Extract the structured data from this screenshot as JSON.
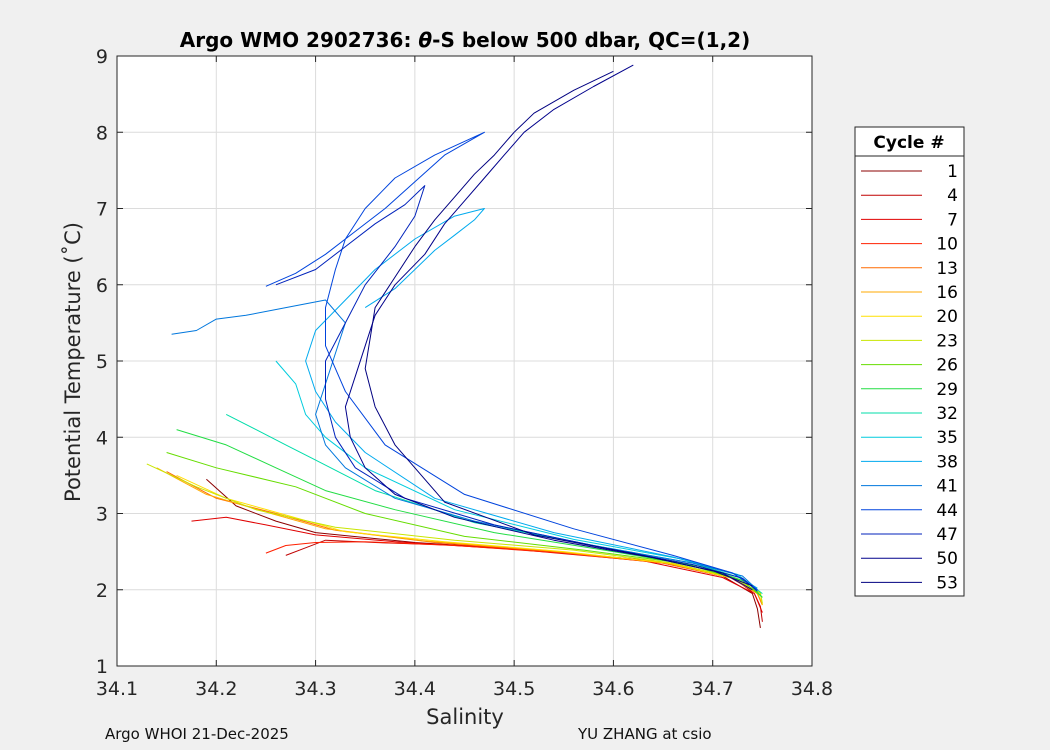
{
  "chart_data": {
    "type": "line",
    "title": "Argo WMO 2902736: θ-S below 500 dbar,  QC=(1,2)",
    "title_parts": {
      "prefix": "Argo WMO 2902736: ",
      "theta": "θ",
      "suffix": "-S below 500 dbar,  QC=(1,2)"
    },
    "xlabel": "Salinity",
    "ylabel": "Potential Temperature (˚C)",
    "xlim": [
      34.1,
      34.8
    ],
    "ylim": [
      1,
      9
    ],
    "xticks": [
      "34.1",
      "34.2",
      "34.3",
      "34.4",
      "34.5",
      "34.6",
      "34.7",
      "34.8"
    ],
    "yticks": [
      "1",
      "2",
      "3",
      "4",
      "5",
      "6",
      "7",
      "8",
      "9"
    ],
    "grid": true,
    "legend_title": "Cycle #",
    "legend_position": "right-outside",
    "series": [
      {
        "name": "1",
        "color": "#8b0000",
        "salinity": [
          34.19,
          34.22,
          34.26,
          34.3,
          34.4,
          34.52,
          34.64,
          34.71,
          34.74,
          34.745,
          34.748
        ],
        "theta": [
          3.45,
          3.1,
          2.9,
          2.75,
          2.62,
          2.52,
          2.38,
          2.18,
          1.95,
          1.75,
          1.5
        ]
      },
      {
        "name": "4",
        "color": "#c00000",
        "salinity": [
          34.27,
          34.29,
          34.31,
          34.36,
          34.45,
          34.56,
          34.66,
          34.72,
          34.742,
          34.748,
          34.75
        ],
        "theta": [
          2.45,
          2.55,
          2.65,
          2.62,
          2.58,
          2.48,
          2.34,
          2.16,
          1.95,
          1.78,
          1.58
        ]
      },
      {
        "name": "7",
        "color": "#e00000",
        "salinity": [
          34.175,
          34.21,
          34.25,
          34.3,
          34.38,
          34.5,
          34.63,
          34.71,
          34.742,
          34.75
        ],
        "theta": [
          2.9,
          2.95,
          2.85,
          2.72,
          2.63,
          2.53,
          2.38,
          2.16,
          1.95,
          1.7
        ]
      },
      {
        "name": "10",
        "color": "#ff2000",
        "salinity": [
          34.25,
          34.27,
          34.3,
          34.35,
          34.44,
          34.55,
          34.65,
          34.715,
          34.745,
          34.75
        ],
        "theta": [
          2.48,
          2.58,
          2.62,
          2.63,
          2.58,
          2.48,
          2.35,
          2.18,
          1.95,
          1.8
        ]
      },
      {
        "name": "13",
        "color": "#ff6a00",
        "salinity": [
          34.15,
          34.2,
          34.26,
          34.32,
          34.42,
          34.54,
          34.65,
          34.72,
          34.745,
          34.75
        ],
        "theta": [
          3.55,
          3.2,
          3.0,
          2.78,
          2.62,
          2.5,
          2.35,
          2.15,
          1.95,
          1.8
        ]
      },
      {
        "name": "16",
        "color": "#ffaa00",
        "salinity": [
          34.14,
          34.19,
          34.25,
          34.31,
          34.41,
          34.53,
          34.65,
          34.72,
          34.745,
          34.75
        ],
        "theta": [
          3.6,
          3.25,
          3.02,
          2.8,
          2.64,
          2.52,
          2.36,
          2.15,
          1.95,
          1.82
        ]
      },
      {
        "name": "20",
        "color": "#ffe000",
        "salinity": [
          34.16,
          34.21,
          34.27,
          34.33,
          34.43,
          34.55,
          34.66,
          34.72,
          34.748,
          34.75
        ],
        "theta": [
          3.5,
          3.2,
          2.98,
          2.76,
          2.63,
          2.5,
          2.34,
          2.15,
          1.95,
          1.8
        ]
      },
      {
        "name": "23",
        "color": "#c8e600",
        "salinity": [
          34.13,
          34.18,
          34.24,
          34.32,
          34.44,
          34.56,
          34.66,
          34.72,
          34.748,
          34.75
        ],
        "theta": [
          3.65,
          3.35,
          3.05,
          2.82,
          2.65,
          2.52,
          2.35,
          2.16,
          1.96,
          1.82
        ]
      },
      {
        "name": "26",
        "color": "#66dd00",
        "salinity": [
          34.15,
          34.2,
          34.28,
          34.35,
          34.45,
          34.57,
          34.67,
          34.73,
          34.75
        ],
        "theta": [
          3.8,
          3.6,
          3.35,
          3.0,
          2.7,
          2.52,
          2.35,
          2.12,
          1.9
        ]
      },
      {
        "name": "29",
        "color": "#22dd44",
        "salinity": [
          34.16,
          34.21,
          34.26,
          34.31,
          34.38,
          34.48,
          34.6,
          34.69,
          34.735,
          34.75
        ],
        "theta": [
          4.1,
          3.9,
          3.6,
          3.3,
          3.05,
          2.75,
          2.5,
          2.3,
          2.1,
          1.9
        ]
      },
      {
        "name": "32",
        "color": "#00ddaa",
        "salinity": [
          34.21,
          34.24,
          34.27,
          34.3,
          34.36,
          34.46,
          34.58,
          34.68,
          34.73,
          34.75
        ],
        "theta": [
          4.3,
          4.1,
          3.9,
          3.7,
          3.3,
          2.88,
          2.58,
          2.35,
          2.15,
          1.95
        ]
      },
      {
        "name": "35",
        "color": "#00ccdd",
        "salinity": [
          34.26,
          34.28,
          34.29,
          34.31,
          34.35,
          34.44,
          34.56,
          34.67,
          34.725,
          34.745
        ],
        "theta": [
          5.0,
          4.7,
          4.3,
          4.0,
          3.6,
          3.05,
          2.66,
          2.4,
          2.2,
          2.0
        ]
      },
      {
        "name": "38",
        "color": "#00aaee",
        "salinity": [
          34.35,
          34.38,
          34.4,
          34.42,
          34.44,
          34.46,
          34.47,
          34.44,
          34.4,
          34.36,
          34.33,
          34.3,
          34.29,
          34.3,
          34.32,
          34.35,
          34.42,
          34.54,
          34.66,
          34.72,
          34.745
        ],
        "theta": [
          5.7,
          5.95,
          6.2,
          6.45,
          6.65,
          6.85,
          7.0,
          6.9,
          6.6,
          6.2,
          5.8,
          5.4,
          5.0,
          4.6,
          4.2,
          3.8,
          3.2,
          2.75,
          2.43,
          2.22,
          2.02
        ]
      },
      {
        "name": "41",
        "color": "#0077dd",
        "salinity": [
          34.155,
          34.18,
          34.2,
          34.23,
          34.27,
          34.31,
          34.33,
          34.32,
          34.31,
          34.3,
          34.31,
          34.33,
          34.38,
          34.46,
          34.58,
          34.68,
          34.73,
          34.745
        ],
        "theta": [
          5.35,
          5.4,
          5.55,
          5.6,
          5.7,
          5.8,
          5.5,
          5.1,
          4.7,
          4.3,
          3.9,
          3.6,
          3.2,
          2.9,
          2.58,
          2.35,
          2.18,
          2.0
        ]
      },
      {
        "name": "44",
        "color": "#0044dd",
        "salinity": [
          34.25,
          34.28,
          34.31,
          34.34,
          34.37,
          34.4,
          34.43,
          34.47,
          34.42,
          34.38,
          34.35,
          34.33,
          34.32,
          34.31,
          34.31,
          34.33,
          34.37,
          34.45,
          34.56,
          34.66,
          34.72,
          34.745
        ],
        "theta": [
          5.98,
          6.15,
          6.4,
          6.7,
          7.0,
          7.35,
          7.7,
          8.0,
          7.7,
          7.4,
          7.0,
          6.6,
          6.2,
          5.7,
          5.2,
          4.6,
          3.9,
          3.25,
          2.8,
          2.45,
          2.22,
          2.0
        ]
      },
      {
        "name": "47",
        "color": "#0022bb",
        "salinity": [
          34.26,
          34.3,
          34.33,
          34.36,
          34.39,
          34.41,
          34.4,
          34.38,
          34.35,
          34.33,
          34.31,
          34.31,
          34.32,
          34.34,
          34.39,
          34.48,
          34.59,
          34.68,
          34.73,
          34.745
        ],
        "theta": [
          6.0,
          6.2,
          6.5,
          6.8,
          7.05,
          7.3,
          6.9,
          6.5,
          6.0,
          5.5,
          5.0,
          4.5,
          4.0,
          3.6,
          3.2,
          2.85,
          2.55,
          2.33,
          2.15,
          1.98
        ]
      },
      {
        "name": "50",
        "color": "#00008b",
        "salinity": [
          34.62,
          34.58,
          34.54,
          34.51,
          34.49,
          34.47,
          34.45,
          34.43,
          34.41,
          34.38,
          34.36,
          34.35,
          34.34,
          34.33,
          34.335,
          34.35,
          34.38,
          34.44,
          34.54,
          34.64,
          34.71,
          34.74
        ],
        "theta": [
          8.88,
          8.6,
          8.3,
          8.0,
          7.7,
          7.4,
          7.1,
          6.8,
          6.4,
          6.0,
          5.6,
          5.2,
          4.8,
          4.4,
          4.0,
          3.6,
          3.25,
          2.95,
          2.65,
          2.42,
          2.22,
          2.0
        ]
      },
      {
        "name": "53",
        "color": "#000080",
        "salinity": [
          34.6,
          34.56,
          34.52,
          34.5,
          34.48,
          34.46,
          34.44,
          34.42,
          34.4,
          34.38,
          34.36,
          34.355,
          34.35,
          34.36,
          34.38,
          34.43,
          34.52,
          34.63,
          34.7,
          34.74
        ],
        "theta": [
          8.8,
          8.55,
          8.25,
          8.0,
          7.7,
          7.45,
          7.15,
          6.85,
          6.5,
          6.1,
          5.7,
          5.3,
          4.9,
          4.4,
          3.9,
          3.15,
          2.72,
          2.45,
          2.25,
          2.05
        ]
      }
    ]
  },
  "footer": {
    "left": "Argo WHOI 21-Dec-2025",
    "right": "YU ZHANG at csio"
  }
}
